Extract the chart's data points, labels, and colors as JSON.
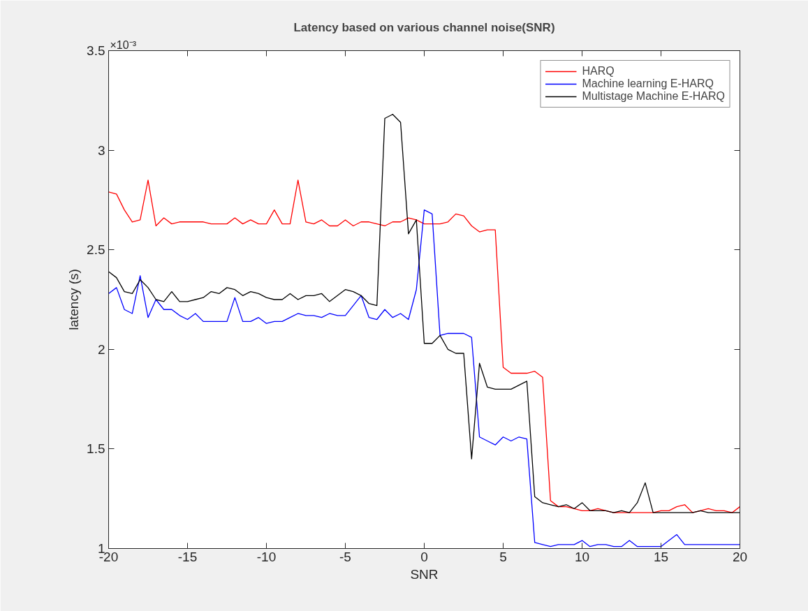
{
  "chart_data": {
    "type": "line",
    "title": "Latency based on various channel noise(SNR)",
    "xlabel": "SNR",
    "ylabel": "latency (s)",
    "annotations": [
      "×10⁻³"
    ],
    "x": [
      -20,
      -19.5,
      -19,
      -18.5,
      -18,
      -17.5,
      -17,
      -16.5,
      -16,
      -15.5,
      -15,
      -14.5,
      -14,
      -13.5,
      -13,
      -12.5,
      -12,
      -11.5,
      -11,
      -10.5,
      -10,
      -9.5,
      -9,
      -8.5,
      -8,
      -7.5,
      -7,
      -6.5,
      -6,
      -5.5,
      -5,
      -4.5,
      -4,
      -3.5,
      -3,
      -2.5,
      -2,
      -1.5,
      -1,
      -0.5,
      0,
      0.5,
      1,
      1.5,
      2,
      2.5,
      3,
      3.5,
      4,
      4.5,
      5,
      5.5,
      6,
      6.5,
      7,
      7.5,
      8,
      8.5,
      9,
      9.5,
      10,
      10.5,
      11,
      11.5,
      12,
      12.5,
      13,
      13.5,
      14,
      14.5,
      15,
      15.5,
      16,
      16.5,
      17,
      17.5,
      18,
      18.5,
      19,
      19.5,
      20
    ],
    "series": [
      {
        "name": "HARQ",
        "color": "#ff0000",
        "values": [
          2.79,
          2.78,
          2.7,
          2.64,
          2.65,
          2.85,
          2.62,
          2.66,
          2.63,
          2.64,
          2.64,
          2.64,
          2.64,
          2.63,
          2.63,
          2.63,
          2.66,
          2.63,
          2.65,
          2.63,
          2.63,
          2.7,
          2.63,
          2.63,
          2.85,
          2.64,
          2.63,
          2.65,
          2.62,
          2.62,
          2.65,
          2.62,
          2.64,
          2.64,
          2.63,
          2.62,
          2.64,
          2.64,
          2.66,
          2.65,
          2.63,
          2.63,
          2.63,
          2.64,
          2.68,
          2.67,
          2.62,
          2.59,
          2.6,
          2.6,
          1.91,
          1.88,
          1.88,
          1.88,
          1.89,
          1.86,
          1.24,
          1.21,
          1.21,
          1.2,
          1.19,
          1.19,
          1.2,
          1.19,
          1.18,
          1.18,
          1.18,
          1.18,
          1.18,
          1.18,
          1.19,
          1.19,
          1.21,
          1.22,
          1.18,
          1.19,
          1.2,
          1.19,
          1.19,
          1.18,
          1.21
        ]
      },
      {
        "name": "Machine learning E-HARQ",
        "color": "#0000ff",
        "values": [
          2.28,
          2.31,
          2.2,
          2.18,
          2.37,
          2.16,
          2.25,
          2.2,
          2.2,
          2.17,
          2.15,
          2.18,
          2.14,
          2.14,
          2.14,
          2.14,
          2.26,
          2.14,
          2.14,
          2.16,
          2.13,
          2.14,
          2.14,
          2.16,
          2.18,
          2.17,
          2.17,
          2.16,
          2.18,
          2.17,
          2.17,
          2.22,
          2.27,
          2.16,
          2.15,
          2.2,
          2.16,
          2.18,
          2.15,
          2.3,
          2.7,
          2.68,
          2.07,
          2.08,
          2.08,
          2.08,
          2.06,
          1.56,
          1.54,
          1.52,
          1.56,
          1.54,
          1.56,
          1.55,
          1.03,
          1.02,
          1.01,
          1.02,
          1.02,
          1.02,
          1.04,
          1.01,
          1.02,
          1.02,
          1.01,
          1.01,
          1.04,
          1.01,
          1.01,
          1.01,
          1.01,
          1.04,
          1.07,
          1.02,
          1.02,
          1.02,
          1.02,
          1.02,
          1.02,
          1.02,
          1.02
        ]
      },
      {
        "name": "Multistage Machine E-HARQ",
        "color": "#000000",
        "values": [
          2.39,
          2.36,
          2.29,
          2.28,
          2.35,
          2.31,
          2.25,
          2.24,
          2.29,
          2.24,
          2.24,
          2.25,
          2.26,
          2.29,
          2.28,
          2.31,
          2.3,
          2.27,
          2.29,
          2.28,
          2.26,
          2.25,
          2.25,
          2.28,
          2.25,
          2.27,
          2.27,
          2.28,
          2.24,
          2.27,
          2.3,
          2.29,
          2.27,
          2.23,
          2.22,
          3.16,
          3.18,
          3.14,
          2.58,
          2.65,
          2.03,
          2.03,
          2.07,
          2.0,
          1.98,
          1.98,
          1.45,
          1.93,
          1.81,
          1.8,
          1.8,
          1.8,
          1.82,
          1.84,
          1.26,
          1.23,
          1.22,
          1.21,
          1.22,
          1.2,
          1.23,
          1.19,
          1.19,
          1.19,
          1.18,
          1.19,
          1.18,
          1.23,
          1.33,
          1.18,
          1.18,
          1.18,
          1.18,
          1.18,
          1.18,
          1.19,
          1.18,
          1.18,
          1.18,
          1.18,
          1.18
        ]
      }
    ],
    "xlim": [
      -20,
      20
    ],
    "ylim": [
      1,
      3.5
    ],
    "xticks": [
      -20,
      -15,
      -10,
      -5,
      0,
      5,
      10,
      15,
      20
    ],
    "yticks": [
      1,
      1.5,
      2,
      2.5,
      3,
      3.5
    ],
    "legend": "top right"
  }
}
